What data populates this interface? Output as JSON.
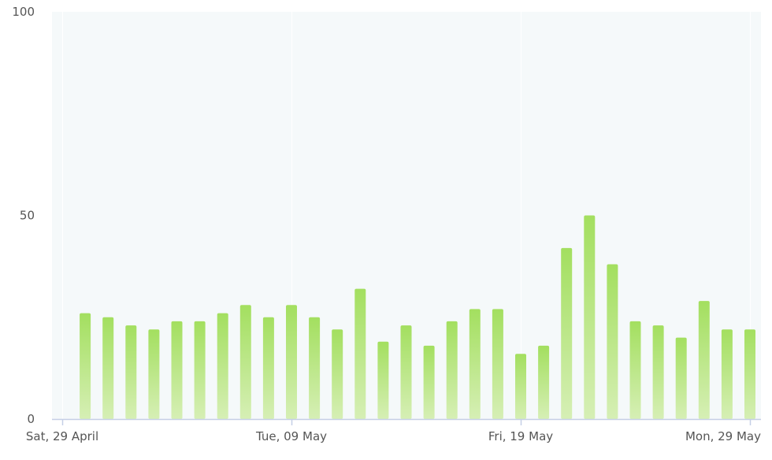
{
  "chart_data": {
    "type": "bar",
    "x_start": "2023-04-29",
    "x_end": "2023-05-29",
    "categories": [
      "2023-04-30",
      "2023-05-01",
      "2023-05-02",
      "2023-05-03",
      "2023-05-04",
      "2023-05-05",
      "2023-05-06",
      "2023-05-07",
      "2023-05-08",
      "2023-05-09",
      "2023-05-10",
      "2023-05-11",
      "2023-05-12",
      "2023-05-13",
      "2023-05-14",
      "2023-05-15",
      "2023-05-16",
      "2023-05-17",
      "2023-05-18",
      "2023-05-19",
      "2023-05-20",
      "2023-05-21",
      "2023-05-22",
      "2023-05-23",
      "2023-05-24",
      "2023-05-25",
      "2023-05-26",
      "2023-05-27",
      "2023-05-28",
      "2023-05-29"
    ],
    "values": [
      26,
      25,
      23,
      22,
      24,
      24,
      26,
      28,
      25,
      28,
      25,
      22,
      32,
      19,
      23,
      18,
      24,
      27,
      27,
      16,
      18,
      42,
      50,
      38,
      24,
      23,
      20,
      29,
      22,
      22
    ],
    "ylim": [
      0,
      100
    ],
    "yticks": [
      {
        "value": 0,
        "label": "0"
      },
      {
        "value": 50,
        "label": "50"
      },
      {
        "value": 100,
        "label": "100"
      }
    ],
    "xticks": [
      {
        "date": "2023-04-29",
        "label": "Sat, 29 April"
      },
      {
        "date": "2023-05-09",
        "label": "Tue, 09 May"
      },
      {
        "date": "2023-05-19",
        "label": "Fri, 19 May"
      },
      {
        "date": "2023-05-29",
        "label": "Mon, 29 May"
      }
    ],
    "grid": true,
    "colors": {
      "bar_top": "#a3df5f",
      "bar_bottom": "#d6efb5",
      "plot_background": "#f5f9fa",
      "grid": "#ffffff",
      "axis": "#c5cfe6",
      "tick_text": "#555555"
    }
  }
}
